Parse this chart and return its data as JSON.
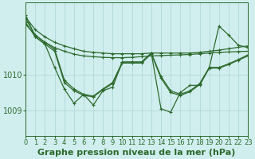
{
  "background_color": "#d0eeee",
  "grid_color": "#aad4d4",
  "line_color": "#2d6a2d",
  "xlabel": "Graphe pression niveau de la mer (hPa)",
  "xlabel_fontsize": 8,
  "tick_fontsize": 6,
  "xlim": [
    0,
    23
  ],
  "ylim": [
    1008.3,
    1012.0
  ],
  "yticks": [
    1009,
    1010
  ],
  "xticks": [
    0,
    1,
    2,
    3,
    4,
    5,
    6,
    7,
    8,
    9,
    10,
    11,
    12,
    13,
    14,
    15,
    16,
    17,
    18,
    19,
    20,
    21,
    22,
    23
  ],
  "series1_x": [
    0,
    1,
    2,
    3,
    4,
    5,
    6,
    7,
    8,
    9,
    10,
    11,
    12,
    13,
    14,
    15,
    16,
    17,
    18,
    19,
    20,
    21,
    22,
    23
  ],
  "series1_y": [
    1011.6,
    1011.25,
    1011.05,
    1010.9,
    1010.8,
    1010.72,
    1010.65,
    1010.62,
    1010.6,
    1010.58,
    1010.58,
    1010.58,
    1010.58,
    1010.6,
    1010.6,
    1010.6,
    1010.6,
    1010.6,
    1010.62,
    1010.65,
    1010.68,
    1010.72,
    1010.76,
    1010.8
  ],
  "series2_x": [
    0,
    1,
    2,
    3,
    4,
    5,
    6,
    7,
    8,
    9,
    10,
    11,
    12,
    13,
    14,
    15,
    16,
    17,
    18,
    19,
    20,
    21,
    22,
    23
  ],
  "series2_y": [
    1011.4,
    1011.1,
    1010.9,
    1010.75,
    1010.65,
    1010.57,
    1010.52,
    1010.5,
    1010.48,
    1010.47,
    1010.47,
    1010.48,
    1010.5,
    1010.52,
    1010.53,
    1010.54,
    1010.55,
    1010.56,
    1010.58,
    1010.6,
    1010.62,
    1010.63,
    1010.64,
    1010.65
  ],
  "series3_x": [
    0,
    1,
    2,
    3,
    4,
    5,
    6,
    7,
    8,
    9,
    10,
    11,
    12,
    13,
    14,
    15,
    16,
    17,
    18,
    19,
    20,
    21,
    22,
    23
  ],
  "series3_y": [
    1011.55,
    1011.1,
    1010.9,
    1010.7,
    1009.85,
    1009.6,
    1009.45,
    1009.4,
    1009.6,
    1009.78,
    1010.35,
    1010.35,
    1010.35,
    1010.6,
    1009.95,
    1009.55,
    1009.45,
    1009.55,
    1009.75,
    1010.2,
    1010.2,
    1010.3,
    1010.42,
    1010.55
  ],
  "series4_x": [
    0,
    1,
    2,
    3,
    4,
    5,
    6,
    7,
    8,
    9,
    10,
    11,
    12,
    13,
    14,
    15,
    16,
    17,
    18,
    19,
    20,
    21,
    22,
    23
  ],
  "series4_y": [
    1011.45,
    1011.05,
    1010.85,
    1010.65,
    1009.78,
    1009.55,
    1009.42,
    1009.38,
    1009.58,
    1009.75,
    1010.32,
    1010.32,
    1010.32,
    1010.58,
    1009.9,
    1009.5,
    1009.42,
    1009.52,
    1009.72,
    1010.18,
    1010.18,
    1010.28,
    1010.4,
    1010.52
  ],
  "series5_x": [
    0,
    1,
    2,
    3,
    4,
    5,
    6,
    7,
    8,
    9,
    10,
    11,
    12,
    13,
    14,
    15,
    16,
    17,
    18,
    19,
    20,
    21,
    22,
    23
  ],
  "series5_y": [
    1011.65,
    1011.05,
    1010.85,
    1010.2,
    1009.6,
    1009.2,
    1009.45,
    1009.15,
    1009.55,
    1009.65,
    1010.35,
    1010.35,
    1010.35,
    1010.6,
    1009.05,
    1008.95,
    1009.5,
    1009.7,
    1009.7,
    1010.2,
    1011.35,
    1011.1,
    1010.82,
    1010.75
  ]
}
